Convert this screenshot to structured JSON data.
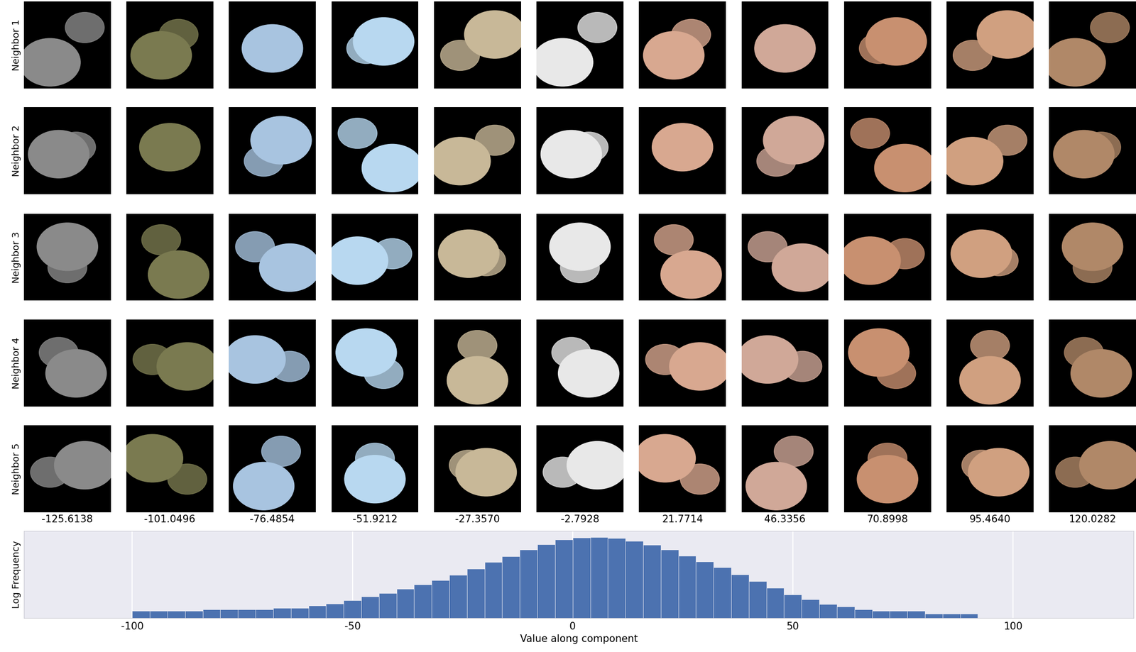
{
  "image_grid": {
    "row_labels": [
      "Neighbor 1",
      "Neighbor 2",
      "Neighbor 3",
      "Neighbor 4",
      "Neighbor 5"
    ],
    "column_labels": [
      "-125.6138",
      "-101.0496",
      "-76.4854",
      "-51.9212",
      "-27.3570",
      "-2.7928",
      "21.7714",
      "46.3356",
      "70.8998",
      "95.4640",
      "120.0282"
    ]
  },
  "chart_data": {
    "type": "histogram",
    "xlabel": "Value along component",
    "ylabel": "Log Frequency",
    "bins": [
      -100,
      -96,
      -92,
      -88,
      -84,
      -80,
      -76,
      -72,
      -68,
      -64,
      -60,
      -56,
      -52,
      -48,
      -44,
      -40,
      -36,
      -32,
      -28,
      -24,
      -20,
      -16,
      -12,
      -8,
      -4,
      0,
      4,
      8,
      12,
      16,
      20,
      24,
      28,
      32,
      36,
      40,
      44,
      48,
      52,
      56,
      60,
      64,
      68,
      72,
      76,
      80,
      84,
      88,
      92
    ],
    "counts": [
      2,
      2,
      2,
      2,
      3,
      3,
      3,
      3,
      4,
      4,
      6,
      9,
      16,
      30,
      50,
      100,
      200,
      400,
      900,
      2500,
      7000,
      18000,
      50000,
      120000,
      250000,
      360000,
      380000,
      330000,
      200000,
      110000,
      50000,
      20000,
      8000,
      3000,
      1000,
      350,
      120,
      40,
      18,
      8,
      5,
      3,
      2,
      2,
      2,
      1,
      1,
      1
    ],
    "color": "#4c72b0",
    "log": "y",
    "xlim": [
      -124.6,
      127.4
    ],
    "xticks": [
      -100,
      -50,
      0,
      50,
      100
    ],
    "ylim": [
      1,
      1000000
    ],
    "grid": true,
    "tick_labels": "x"
  }
}
